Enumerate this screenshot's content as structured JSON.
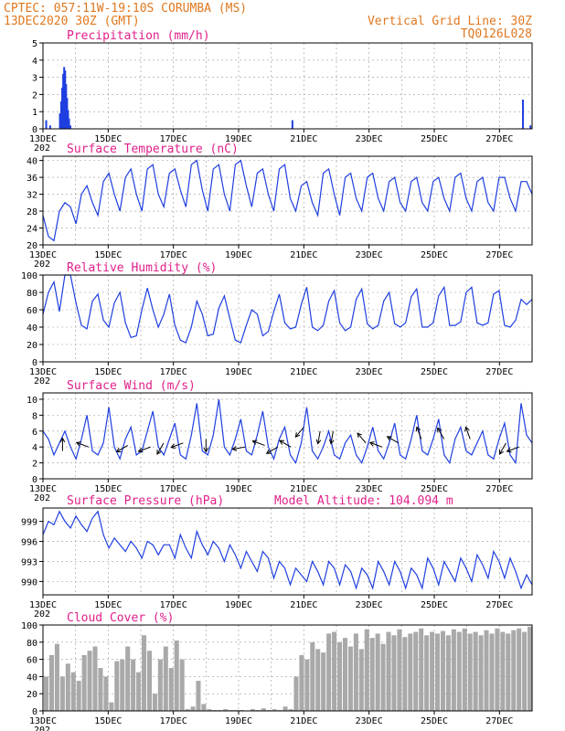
{
  "header": {
    "line1_left": "CPTEC:   057:11W-19:10S   CORUMBA (MS)",
    "line2_left": "13DEC2020 30Z (GMT)",
    "line1_right": "Vertical Grid Line: 30Z",
    "line2_right": "TQ0126L028",
    "colors": {
      "header": "#e07820",
      "panel_title": "#e0208a",
      "series": "#1f3fe0",
      "cloud": "#a9a9a9",
      "arrow": "#000000"
    }
  },
  "x_axis": {
    "labels": [
      "13DEC",
      "15DEC",
      "17DEC",
      "19DEC",
      "21DEC",
      "23DEC",
      "25DEC",
      "27DEC"
    ],
    "start_label": "13DEC",
    "year_fragment": "202",
    "days": 15,
    "label_days": [
      0,
      2,
      4,
      6,
      8,
      10,
      12,
      14
    ]
  },
  "chart_data": [
    {
      "type": "bar",
      "title": "Precipitation (mm/h)",
      "ylim": [
        0,
        5
      ],
      "yticks": [
        0,
        1,
        2,
        3,
        4,
        5
      ],
      "points": [
        [
          0.1,
          0.5
        ],
        [
          0.22,
          0.2
        ],
        [
          0.52,
          0.9
        ],
        [
          0.56,
          1.6
        ],
        [
          0.59,
          2.4
        ],
        [
          0.62,
          3.2
        ],
        [
          0.65,
          3.6
        ],
        [
          0.68,
          3.4
        ],
        [
          0.71,
          2.6
        ],
        [
          0.74,
          1.8
        ],
        [
          0.77,
          1.1
        ],
        [
          0.8,
          0.6
        ],
        [
          0.84,
          0.2
        ],
        [
          7.65,
          0.5
        ],
        [
          14.72,
          1.7
        ],
        [
          14.95,
          0.2
        ]
      ]
    },
    {
      "type": "line",
      "title": "Surface Temperature (nC)",
      "ylim": [
        20,
        41
      ],
      "yticks": [
        20,
        24,
        28,
        32,
        36,
        40
      ],
      "values": [
        27,
        22,
        21,
        28,
        30,
        29,
        25,
        32,
        34,
        30,
        27,
        35,
        37,
        32,
        28,
        36,
        38,
        32,
        28,
        38,
        39,
        32,
        29,
        37,
        38,
        33,
        29,
        39,
        40,
        33,
        28,
        38,
        39,
        32,
        28,
        39,
        40,
        34,
        29,
        37,
        38,
        32,
        28,
        38,
        39,
        31,
        28,
        34,
        35,
        30,
        27,
        37,
        38,
        32,
        27,
        36,
        37,
        31,
        28,
        36,
        37,
        31,
        28,
        35,
        36,
        30,
        28,
        35,
        36,
        30,
        28,
        35,
        36,
        31,
        28,
        36,
        37,
        31,
        28,
        35,
        36,
        30,
        28,
        36,
        36,
        31,
        28,
        35,
        35,
        32
      ]
    },
    {
      "type": "line",
      "title": "Relative Humidity (%)",
      "ylim": [
        0,
        100
      ],
      "yticks": [
        0,
        20,
        40,
        60,
        80,
        100
      ],
      "values": [
        55,
        80,
        92,
        58,
        100,
        100,
        68,
        42,
        38,
        70,
        78,
        48,
        40,
        68,
        80,
        45,
        28,
        30,
        60,
        85,
        60,
        40,
        55,
        78,
        42,
        25,
        22,
        40,
        70,
        55,
        30,
        32,
        62,
        76,
        50,
        25,
        22,
        42,
        60,
        55,
        30,
        35,
        58,
        78,
        45,
        38,
        40,
        66,
        86,
        40,
        36,
        42,
        70,
        82,
        45,
        36,
        40,
        72,
        84,
        44,
        38,
        42,
        70,
        80,
        44,
        40,
        45,
        75,
        84,
        40,
        40,
        45,
        76,
        86,
        42,
        42,
        46,
        80,
        86,
        45,
        42,
        45,
        78,
        82,
        42,
        40,
        48,
        72,
        66,
        72
      ]
    },
    {
      "type": "line",
      "title": "Surface Wind (m/s)",
      "ylim": [
        0,
        10.8
      ],
      "yticks": [
        0,
        2,
        4,
        6,
        8,
        10
      ],
      "values": [
        6.0,
        5.0,
        3.0,
        4.5,
        6.0,
        4.0,
        2.5,
        5.0,
        8.0,
        3.5,
        3.0,
        4.5,
        9.0,
        4.0,
        2.5,
        5.0,
        6.5,
        3.0,
        3.5,
        6.0,
        8.5,
        4.0,
        3.0,
        5.0,
        7.0,
        3.0,
        2.5,
        5.5,
        9.5,
        3.5,
        3.0,
        5.5,
        10.0,
        4.0,
        3.0,
        5.0,
        7.5,
        3.5,
        3.0,
        5.5,
        8.5,
        4.0,
        2.5,
        5.0,
        6.5,
        3.0,
        2.0,
        4.5,
        9.0,
        3.5,
        2.5,
        4.0,
        6.0,
        3.0,
        2.5,
        4.5,
        5.5,
        3.0,
        2.0,
        4.0,
        6.5,
        3.5,
        2.5,
        4.5,
        7.0,
        3.0,
        2.5,
        5.0,
        8.0,
        3.5,
        3.0,
        5.0,
        7.5,
        3.0,
        2.0,
        5.0,
        6.5,
        3.5,
        3.0,
        4.5,
        6.0,
        3.0,
        2.5,
        5.0,
        7.0,
        3.0,
        2.0,
        9.5,
        5.5,
        4.5
      ],
      "wind_arrows": [
        [
          0.6,
          270,
          3.5
        ],
        [
          1.4,
          200,
          4.0
        ],
        [
          2.6,
          150,
          4.2
        ],
        [
          3.3,
          160,
          4.0
        ],
        [
          3.7,
          120,
          4.5
        ],
        [
          4.3,
          160,
          4.5
        ],
        [
          5.0,
          90,
          5.0
        ],
        [
          6.2,
          170,
          4.0
        ],
        [
          6.8,
          200,
          4.2
        ],
        [
          7.2,
          150,
          4.0
        ],
        [
          7.6,
          210,
          4.0
        ],
        [
          8.0,
          130,
          6.5
        ],
        [
          8.5,
          100,
          6.0
        ],
        [
          8.9,
          100,
          6.0
        ],
        [
          9.9,
          230,
          4.5
        ],
        [
          10.4,
          200,
          4.0
        ],
        [
          10.9,
          210,
          4.5
        ],
        [
          11.6,
          250,
          5.0
        ],
        [
          12.3,
          240,
          5.0
        ],
        [
          13.1,
          250,
          5.0
        ],
        [
          14.2,
          120,
          4.5
        ],
        [
          14.6,
          160,
          4.0
        ]
      ]
    },
    {
      "type": "line",
      "title": "Surface Pressure (hPa)",
      "annotation": "Model Altitude: 104.094 m",
      "ylim": [
        988,
        1001
      ],
      "yticks": [
        990,
        993,
        996,
        999
      ],
      "values": [
        997.0,
        999.0,
        998.5,
        1000.5,
        999.0,
        998.0,
        999.8,
        998.5,
        997.5,
        999.5,
        1000.5,
        997.0,
        995.0,
        996.5,
        995.5,
        994.5,
        996.0,
        995.0,
        993.5,
        996.0,
        995.5,
        994.0,
        995.5,
        995.5,
        993.5,
        997.0,
        995.0,
        993.5,
        997.5,
        995.5,
        994.0,
        996.0,
        995.0,
        993.0,
        995.5,
        994.0,
        992.0,
        994.5,
        993.0,
        991.5,
        994.5,
        993.5,
        990.5,
        993.0,
        992.0,
        989.5,
        992.0,
        991.0,
        990.0,
        993.0,
        991.5,
        989.5,
        993.0,
        992.0,
        989.5,
        992.5,
        991.5,
        989.0,
        992.0,
        991.0,
        989.0,
        993.0,
        991.5,
        989.5,
        993.0,
        991.5,
        989.0,
        992.0,
        991.0,
        989.0,
        993.5,
        992.0,
        989.5,
        993.0,
        991.5,
        990.0,
        993.5,
        992.0,
        990.0,
        994.0,
        992.5,
        990.5,
        994.5,
        993.0,
        990.5,
        993.5,
        991.5,
        989.0,
        991.0,
        989.5
      ]
    },
    {
      "type": "bar",
      "title": "Cloud Cover (%)",
      "ylim": [
        0,
        100
      ],
      "yticks": [
        0,
        20,
        40,
        60,
        80,
        100
      ],
      "values": [
        40,
        65,
        78,
        40,
        55,
        45,
        35,
        65,
        70,
        75,
        50,
        40,
        10,
        58,
        60,
        75,
        60,
        45,
        88,
        70,
        20,
        60,
        75,
        50,
        82,
        60,
        2,
        5,
        35,
        8,
        2,
        1,
        1,
        2,
        1,
        1,
        1,
        0,
        2,
        1,
        3,
        1,
        2,
        1,
        5,
        2,
        40,
        65,
        60,
        80,
        72,
        68,
        90,
        92,
        80,
        85,
        75,
        90,
        72,
        95,
        85,
        90,
        78,
        92,
        88,
        95,
        86,
        90,
        92,
        96,
        88,
        92,
        90,
        93,
        88,
        95,
        92,
        96,
        90,
        92,
        88,
        94,
        90,
        96,
        92,
        90,
        94,
        96,
        92,
        98
      ]
    }
  ]
}
